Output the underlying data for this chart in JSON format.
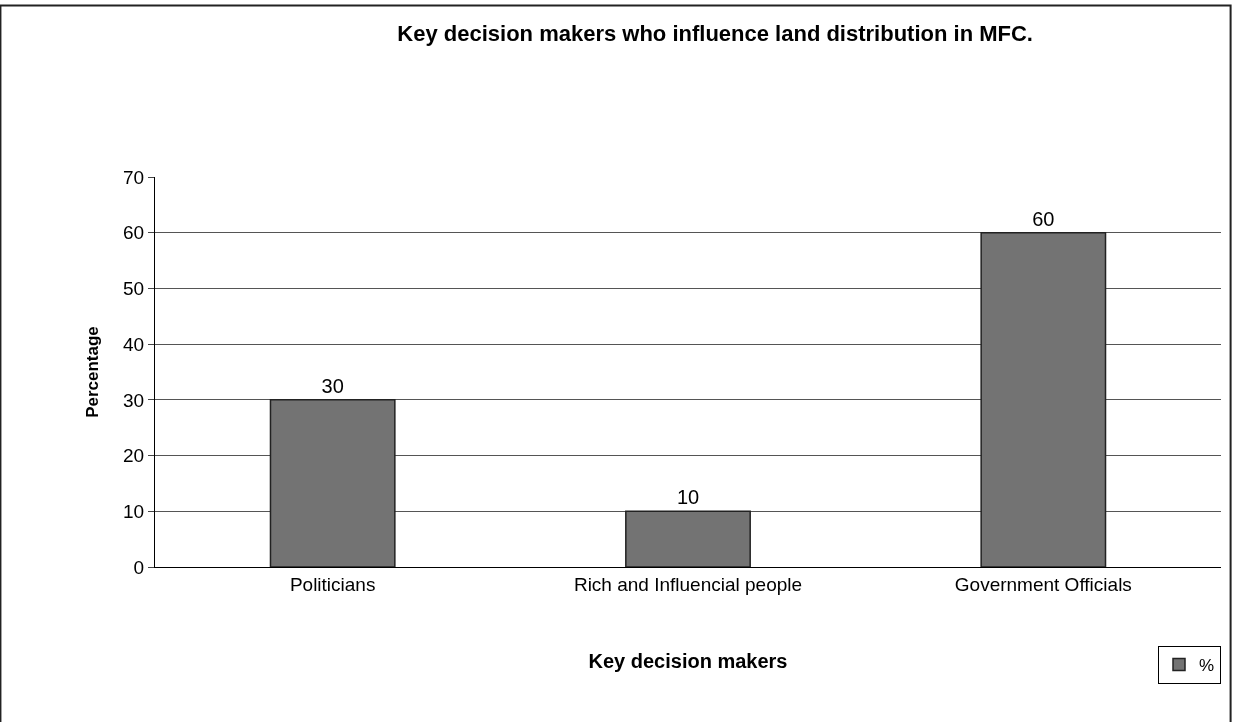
{
  "chart_data": {
    "type": "bar",
    "title": "Key decision makers who influence land distribution in MFC.",
    "xlabel": "Key decision makers",
    "ylabel": "Percentage",
    "categories": [
      "Politicians",
      "Rich and Influencial people",
      "Government Officials"
    ],
    "series": [
      {
        "name": "%",
        "color": "#737373",
        "values": [
          30,
          10,
          60
        ]
      }
    ],
    "ylim": [
      0,
      70
    ],
    "yticks": [
      0,
      10,
      20,
      30,
      40,
      50,
      60,
      70
    ],
    "grid": "y",
    "legend": "bottom right",
    "data_labels": true
  }
}
